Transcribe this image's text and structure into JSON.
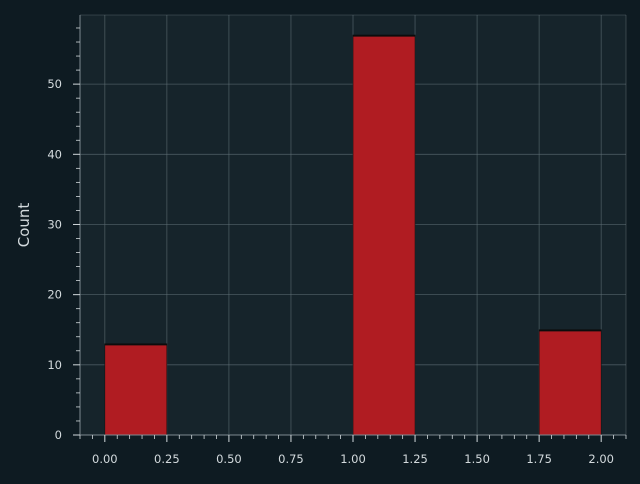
{
  "chart_data": {
    "type": "bar",
    "title": "",
    "xlabel": "",
    "ylabel": "Count",
    "bins": [
      {
        "x0": 0.0,
        "x1": 0.25,
        "count": 13
      },
      {
        "x0": 1.0,
        "x1": 1.25,
        "count": 57
      },
      {
        "x0": 1.75,
        "x1": 2.0,
        "count": 15
      }
    ],
    "xlim": [
      -0.1,
      2.1
    ],
    "ylim": [
      0,
      59.85
    ],
    "x_ticks": [
      0.0,
      0.25,
      0.5,
      0.75,
      1.0,
      1.25,
      1.5,
      1.75,
      2.0
    ],
    "x_tick_labels": [
      "0.00",
      "0.25",
      "0.50",
      "0.75",
      "1.00",
      "1.25",
      "1.50",
      "1.75",
      "2.00"
    ],
    "y_ticks": [
      0,
      10,
      20,
      30,
      40,
      50
    ],
    "y_tick_labels": [
      "0",
      "10",
      "20",
      "30",
      "40",
      "50"
    ],
    "grid": true,
    "colors": {
      "figure_bg": "#0e1b22",
      "axes_bg": "#16242b",
      "bar_fill": "#b01c22",
      "bar_edge": "#0c0c0c",
      "grid": "#5f6f76",
      "axis": "#7d8a90",
      "text": "#d3dadd"
    }
  }
}
